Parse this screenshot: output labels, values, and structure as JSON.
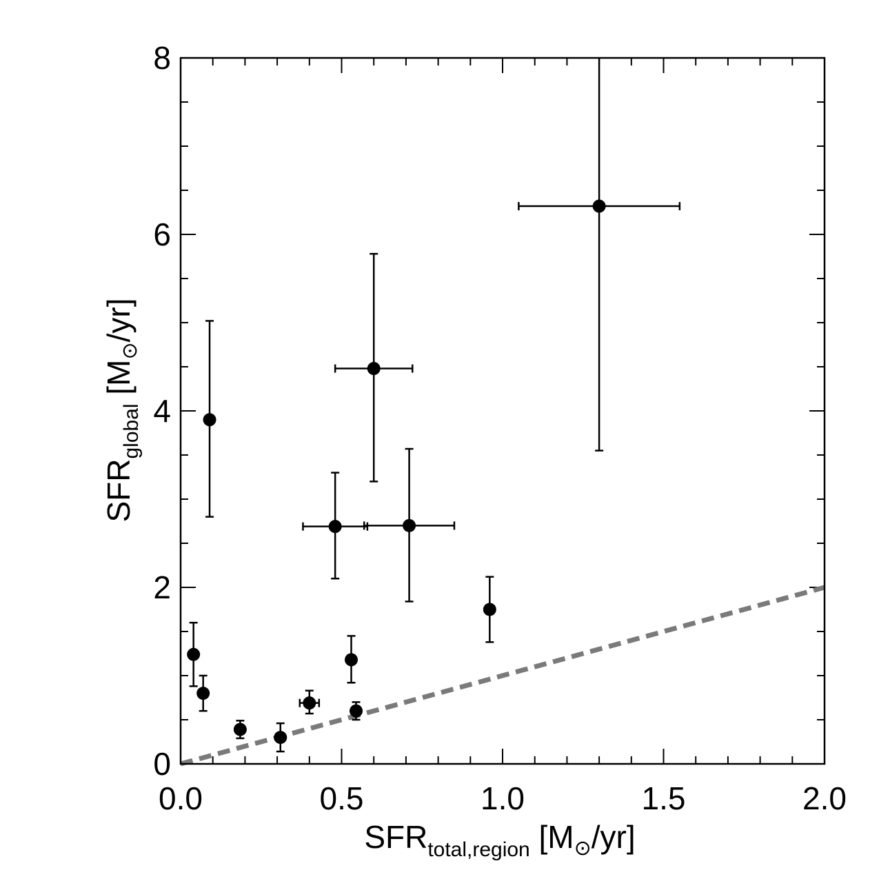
{
  "chart_data": {
    "type": "scatter",
    "title": "",
    "xlabel": {
      "main": "SFR",
      "sub": "total,region",
      "unit_open": " [M",
      "sun": "⊙",
      "unit_close": "/yr]"
    },
    "ylabel": {
      "main": "SFR",
      "sub": "global",
      "unit_open": " [M",
      "sun": "⊙",
      "unit_close": "/yr]"
    },
    "xlim": [
      0,
      2
    ],
    "ylim": [
      0,
      8
    ],
    "x_ticks": [
      0.0,
      0.5,
      1.0,
      1.5,
      2.0
    ],
    "x_tick_labels": [
      "0.0",
      "0.5",
      "1.0",
      "1.5",
      "2.0"
    ],
    "y_ticks": [
      0,
      2,
      4,
      6,
      8
    ],
    "y_tick_labels": [
      "0",
      "2",
      "4",
      "6",
      "8"
    ],
    "grid": false,
    "points": [
      {
        "x": 0.04,
        "y": 1.24,
        "y_lo": 0.88,
        "y_hi": 1.6
      },
      {
        "x": 0.07,
        "y": 0.8,
        "y_lo": 0.6,
        "y_hi": 1.0
      },
      {
        "x": 0.09,
        "y": 3.9,
        "y_lo": 2.8,
        "y_hi": 5.02,
        "x_lo": 0.08,
        "x_hi": 0.1
      },
      {
        "x": 0.185,
        "y": 0.39,
        "y_lo": 0.29,
        "y_hi": 0.49
      },
      {
        "x": 0.31,
        "y": 0.3,
        "y_lo": 0.14,
        "y_hi": 0.46
      },
      {
        "x": 0.4,
        "y": 0.69,
        "y_lo": 0.57,
        "y_hi": 0.83,
        "x_lo": 0.37,
        "x_hi": 0.43
      },
      {
        "x": 0.48,
        "y": 2.69,
        "y_lo": 2.1,
        "y_hi": 3.3,
        "x_lo": 0.38,
        "x_hi": 0.58
      },
      {
        "x": 0.53,
        "y": 1.18,
        "y_lo": 0.92,
        "y_hi": 1.45
      },
      {
        "x": 0.545,
        "y": 0.6,
        "y_lo": 0.5,
        "y_hi": 0.7
      },
      {
        "x": 0.6,
        "y": 4.48,
        "y_lo": 3.2,
        "y_hi": 5.78,
        "x_lo": 0.48,
        "x_hi": 0.72
      },
      {
        "x": 0.71,
        "y": 2.7,
        "y_lo": 1.84,
        "y_hi": 3.57,
        "x_lo": 0.57,
        "x_hi": 0.85
      },
      {
        "x": 0.96,
        "y": 1.75,
        "y_lo": 1.38,
        "y_hi": 2.12
      },
      {
        "x": 1.3,
        "y": 6.32,
        "y_lo": 3.55,
        "y_hi": 8.0,
        "x_lo": 1.05,
        "x_hi": 1.55
      }
    ],
    "reference_line": {
      "x": [
        0,
        2
      ],
      "y": [
        0,
        2
      ],
      "style": "dashed",
      "color": "#7a7a7a"
    },
    "marker_color": "#000000"
  }
}
